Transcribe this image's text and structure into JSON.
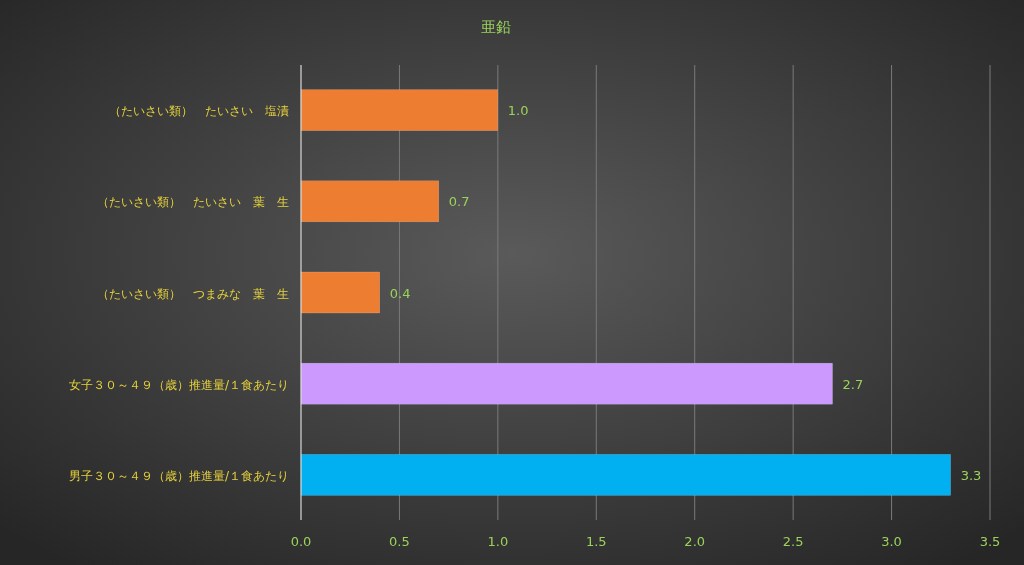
{
  "chart_data": {
    "type": "bar",
    "orientation": "horizontal",
    "title": "亜鉛",
    "categories": [
      "（たいさい類）　たいさい　塩漬",
      "（たいさい類）　たいさい　葉　生",
      "（たいさい類）　つまみな　葉　生",
      "女子３０～４９（歳）推進量/１食あたり",
      "男子３０～４９（歳）推進量/１食あたり"
    ],
    "values": [
      1.0,
      0.7,
      0.4,
      2.7,
      3.3
    ],
    "value_labels": [
      "1.0",
      "0.7",
      "0.4",
      "2.7",
      "3.3"
    ],
    "colors": [
      "#ed7d31",
      "#ed7d31",
      "#ed7d31",
      "#cc99ff",
      "#00b0f0"
    ],
    "xlim": [
      0,
      3.5
    ],
    "xticks": [
      {
        "value": 0,
        "label": "0.0"
      },
      {
        "value": 0.5,
        "label": "0.5"
      },
      {
        "value": 1,
        "label": "1.0"
      },
      {
        "value": 1.5,
        "label": "1.5"
      },
      {
        "value": 2,
        "label": "2.0"
      },
      {
        "value": 2.5,
        "label": "2.5"
      },
      {
        "value": 3,
        "label": "3.0"
      },
      {
        "value": 3.5,
        "label": "3.5"
      }
    ],
    "grid": "x"
  }
}
